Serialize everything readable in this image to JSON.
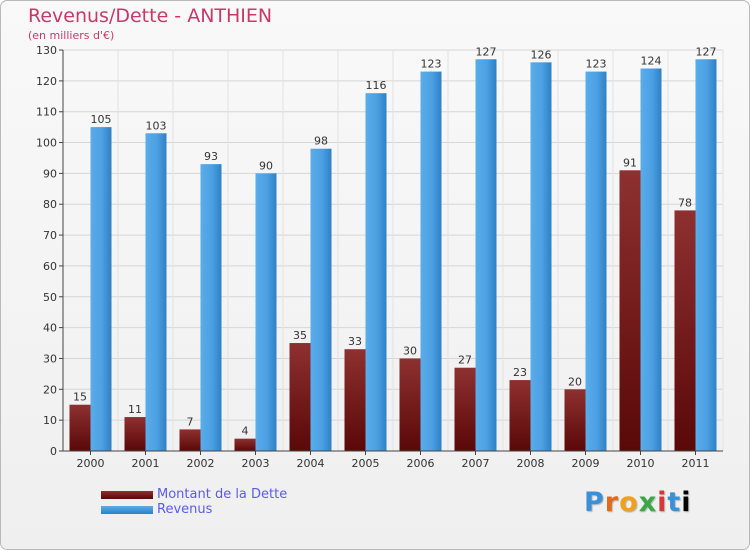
{
  "chart_data": {
    "type": "bar",
    "title": "Revenus/Dette - ANTHIEN",
    "subtitle": "(en milliers d'€)",
    "categories": [
      "2000",
      "2001",
      "2002",
      "2003",
      "2004",
      "2005",
      "2006",
      "2007",
      "2008",
      "2009",
      "2010",
      "2011"
    ],
    "series": [
      {
        "name": "Montant de la Dette",
        "values": [
          15,
          11,
          7,
          4,
          35,
          33,
          30,
          27,
          23,
          20,
          91,
          78
        ]
      },
      {
        "name": "Revenus",
        "values": [
          105,
          103,
          93,
          90,
          98,
          116,
          123,
          127,
          126,
          123,
          124,
          127
        ]
      }
    ],
    "ylim": [
      0,
      130
    ],
    "yticks": [
      0,
      10,
      20,
      30,
      40,
      50,
      60,
      70,
      80,
      90,
      100,
      110,
      120,
      130
    ],
    "grid": true,
    "legend_position": "bottom-left",
    "colors": {
      "debt": "#8b2a2a",
      "revenue": "#4ea2e0",
      "title": "#c8396a",
      "legend_text": "#5a5af0"
    }
  },
  "logo_text": "Proxiti"
}
